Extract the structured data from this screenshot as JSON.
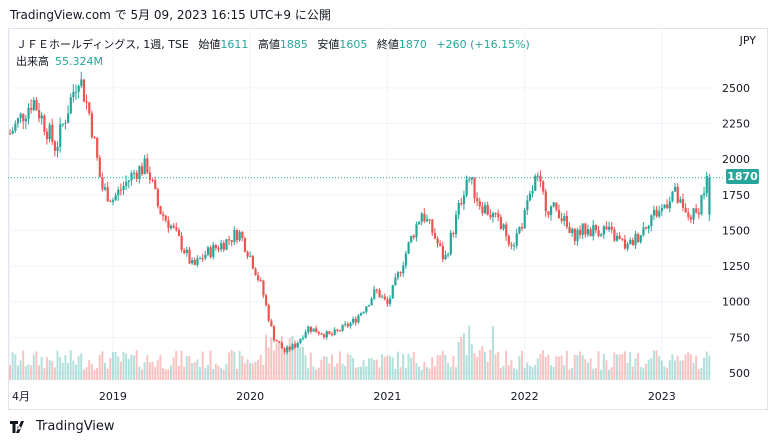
{
  "header": {
    "published": "TradingView.com で 5月 09, 2023 16:15 UTC+9 に公開"
  },
  "legend": {
    "symbol": "ＪＦＥホールディングス, 1週, TSE",
    "open_label": "始値",
    "open": "1611",
    "high_label": "高値",
    "high": "1885",
    "low_label": "安値",
    "low": "1605",
    "close_label": "終値",
    "close": "1870",
    "change": "+260 (+16.15%)",
    "volume_label": "出来高",
    "volume": "55.324M"
  },
  "currency": "JPY",
  "last_price_tag": "1870",
  "footer": {
    "brand": "TradingView"
  },
  "colors": {
    "up": "#26a69a",
    "down": "#ef5350",
    "grid": "#f0f3fa",
    "text": "#131722"
  },
  "chart_data": {
    "type": "candlestick",
    "interval": "1週",
    "y_ticks": [
      500,
      750,
      1000,
      1250,
      1500,
      1750,
      2000,
      2250,
      2500
    ],
    "x_ticks": [
      "4月",
      "2019",
      "2020",
      "2021",
      "2022",
      "2023"
    ],
    "ylim": [
      430,
      2780
    ],
    "grid": true,
    "last_close": 1870,
    "anchors": [
      [
        "2018-04",
        2180
      ],
      [
        "2018-06",
        2420
      ],
      [
        "2018-08",
        2080
      ],
      [
        "2018-10",
        2600
      ],
      [
        "2018-11",
        2300
      ],
      [
        "2018-12",
        1800
      ],
      [
        "2019-01",
        1720
      ],
      [
        "2019-03",
        1920
      ],
      [
        "2019-04",
        1950
      ],
      [
        "2019-05",
        1650
      ],
      [
        "2019-06",
        1540
      ],
      [
        "2019-07",
        1400
      ],
      [
        "2019-08",
        1240
      ],
      [
        "2019-09",
        1330
      ],
      [
        "2019-11",
        1430
      ],
      [
        "2019-12",
        1490
      ],
      [
        "2020-01",
        1320
      ],
      [
        "2020-02",
        1100
      ],
      [
        "2020-03",
        760
      ],
      [
        "2020-04",
        650
      ],
      [
        "2020-05",
        700
      ],
      [
        "2020-06",
        820
      ],
      [
        "2020-08",
        760
      ],
      [
        "2020-10",
        860
      ],
      [
        "2020-11",
        960
      ],
      [
        "2020-12",
        1080
      ],
      [
        "2021-01",
        980
      ],
      [
        "2021-02",
        1200
      ],
      [
        "2021-03",
        1430
      ],
      [
        "2021-04",
        1630
      ],
      [
        "2021-05",
        1480
      ],
      [
        "2021-06",
        1290
      ],
      [
        "2021-07",
        1580
      ],
      [
        "2021-08",
        1890
      ],
      [
        "2021-09",
        1700
      ],
      [
        "2021-10",
        1620
      ],
      [
        "2021-11",
        1520
      ],
      [
        "2021-12",
        1410
      ],
      [
        "2022-01",
        1600
      ],
      [
        "2022-02",
        1870
      ],
      [
        "2022-03",
        1660
      ],
      [
        "2022-04",
        1640
      ],
      [
        "2022-05",
        1460
      ],
      [
        "2022-06",
        1500
      ],
      [
        "2022-08",
        1510
      ],
      [
        "2022-10",
        1380
      ],
      [
        "2022-11",
        1470
      ],
      [
        "2022-12",
        1600
      ],
      [
        "2023-01",
        1650
      ],
      [
        "2023-02",
        1780
      ],
      [
        "2023-03",
        1600
      ],
      [
        "2023-04",
        1610
      ],
      [
        "2023-05",
        1870
      ]
    ]
  }
}
